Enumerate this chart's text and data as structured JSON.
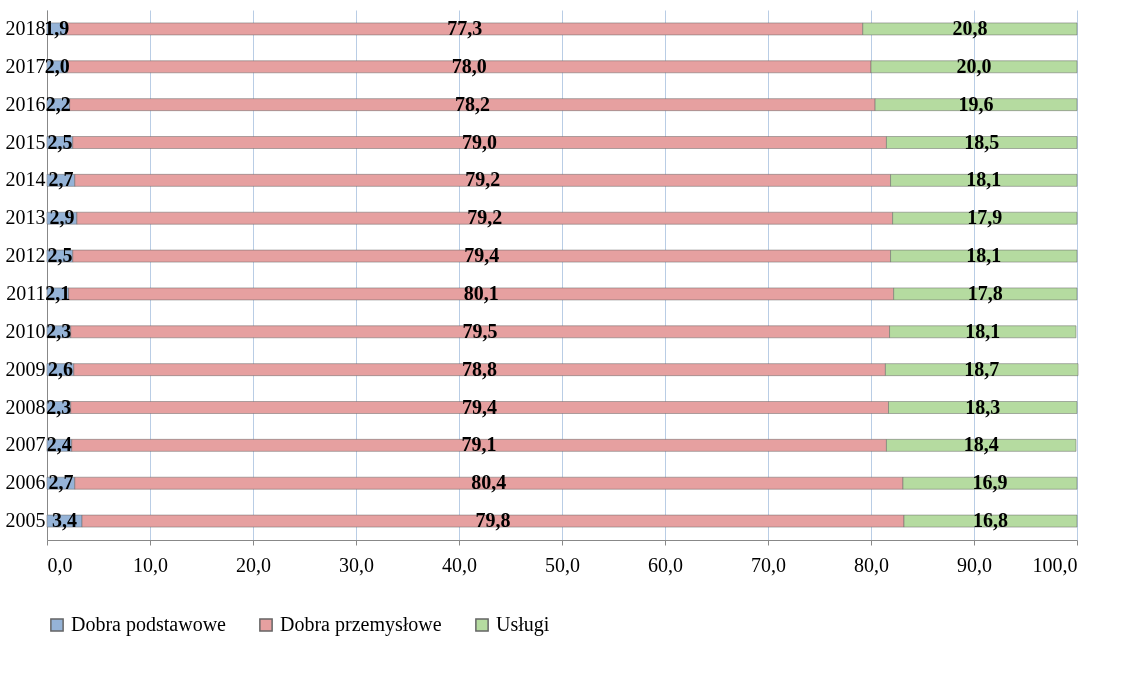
{
  "chart_data": {
    "type": "bar",
    "orientation": "horizontal",
    "stacked": true,
    "categories": [
      "2018",
      "2017",
      "2016",
      "2015",
      "2014",
      "2013",
      "2012",
      "2011",
      "2010",
      "2009",
      "2008",
      "2007",
      "2006",
      "2005"
    ],
    "series": [
      {
        "name": "Dobra podstawowe",
        "color": "#95b3d7",
        "values": [
          1.9,
          2.0,
          2.2,
          2.5,
          2.7,
          2.9,
          2.5,
          2.1,
          2.3,
          2.6,
          2.3,
          2.4,
          2.7,
          3.4
        ],
        "value_labels": [
          "1,9",
          "2,0",
          "2,2",
          "2,5",
          "2,7",
          "2,9",
          "2,5",
          "2,1",
          "2,3",
          "2,6",
          "2,3",
          "2,4",
          "2,7",
          "3,4"
        ]
      },
      {
        "name": "Dobra przemysłowe",
        "color": "#e6a0a0",
        "values": [
          77.3,
          78.0,
          78.2,
          79.0,
          79.2,
          79.2,
          79.4,
          80.1,
          79.5,
          78.8,
          79.4,
          79.1,
          80.4,
          79.8
        ],
        "value_labels": [
          "77,3",
          "78,0",
          "78,2",
          "79,0",
          "79,2",
          "79,2",
          "79,4",
          "80,1",
          "79,5",
          "78,8",
          "79,4",
          "79,1",
          "80,4",
          "79,8"
        ]
      },
      {
        "name": "Usługi",
        "color": "#b5dba0",
        "values": [
          20.8,
          20.0,
          19.6,
          18.5,
          18.1,
          17.9,
          18.1,
          17.8,
          18.1,
          18.7,
          18.3,
          18.4,
          16.9,
          16.8
        ],
        "value_labels": [
          "20,8",
          "20,0",
          "19,6",
          "18,5",
          "18,1",
          "17,9",
          "18,1",
          "17,8",
          "18,1",
          "18,7",
          "18,3",
          "18,4",
          "16,9",
          "16,8"
        ]
      }
    ],
    "xlim": [
      0,
      100
    ],
    "xticks": [
      {
        "value": 0,
        "label": "0,0"
      },
      {
        "value": 10,
        "label": "10,0"
      },
      {
        "value": 20,
        "label": "20,0"
      },
      {
        "value": 30,
        "label": "30,0"
      },
      {
        "value": 40,
        "label": "40,0"
      },
      {
        "value": 50,
        "label": "50,0"
      },
      {
        "value": 60,
        "label": "60,0"
      },
      {
        "value": 70,
        "label": "70,0"
      },
      {
        "value": 80,
        "label": "80,0"
      },
      {
        "value": 90,
        "label": "90,0"
      },
      {
        "value": 100,
        "label": "100,0"
      }
    ],
    "grid": "x",
    "legend": "bottom"
  }
}
